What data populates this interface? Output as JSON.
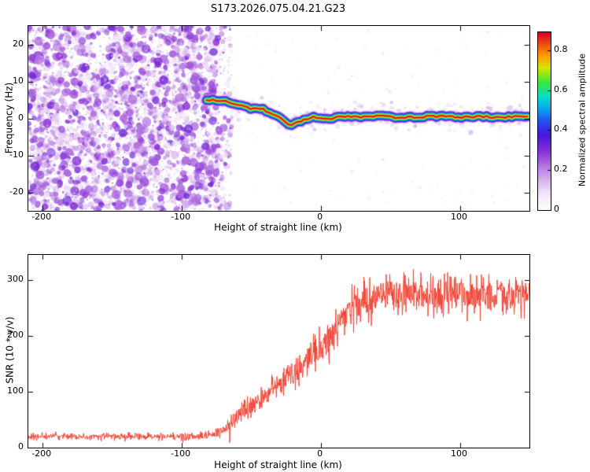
{
  "chart_data": [
    {
      "type": "heatmap",
      "title": "S173.2026.075.04.21.G23",
      "xlabel": "Height of straight line (km)",
      "ylabel": "Frequency (Hz)",
      "xlim": [
        -210,
        150
      ],
      "ylim": [
        -25,
        25
      ],
      "x_ticks": [
        -200,
        -100,
        0,
        100
      ],
      "y_ticks": [
        -20,
        -10,
        0,
        10,
        20
      ],
      "grid": false,
      "noise_region": {
        "x_start": -210,
        "x_end": -64
      },
      "trace": {
        "x": [
          -82,
          -75,
          -68,
          -62,
          -56,
          -50,
          -45,
          -40,
          -35,
          -30,
          -26,
          -22,
          -18,
          -14,
          -10,
          -5,
          0,
          6,
          12,
          20,
          30,
          42,
          55,
          70,
          85,
          100,
          115,
          130,
          140,
          150
        ],
        "f": [
          4.8,
          5.0,
          4.6,
          4.1,
          3.4,
          2.7,
          3.0,
          2.2,
          1.2,
          0.2,
          -0.8,
          -1.8,
          -1.4,
          -0.7,
          -0.1,
          0.3,
          0.2,
          -0.2,
          0.4,
          0.6,
          0.3,
          0.6,
          0.2,
          0.4,
          0.6,
          0.3,
          0.5,
          0.3,
          0.5,
          0.3
        ]
      },
      "colorbar": {
        "label": "Normalized spectral amplitude",
        "ticks": [
          "0",
          "0.2",
          "0.4",
          "0.6",
          "0.8"
        ],
        "range": [
          0,
          0.89
        ]
      },
      "colormap": [
        {
          "v": 0.0,
          "c": "#ffffff"
        },
        {
          "v": 0.1,
          "c": "#efe2f8"
        },
        {
          "v": 0.22,
          "c": "#c08ae4"
        },
        {
          "v": 0.33,
          "c": "#8a2fd4"
        },
        {
          "v": 0.42,
          "c": "#4318da"
        },
        {
          "v": 0.5,
          "c": "#2450f2"
        },
        {
          "v": 0.57,
          "c": "#09a6f2"
        },
        {
          "v": 0.64,
          "c": "#06dfc8"
        },
        {
          "v": 0.72,
          "c": "#3ae838"
        },
        {
          "v": 0.8,
          "c": "#d8e500"
        },
        {
          "v": 0.88,
          "c": "#ff9000"
        },
        {
          "v": 1.0,
          "c": "#d80028"
        }
      ]
    },
    {
      "type": "line",
      "xlabel": "Height of straight line (km)",
      "ylabel": "SNR (10 * v/v)",
      "xlim": [
        -210,
        150
      ],
      "ylim": [
        0,
        345
      ],
      "x_ticks": [
        -200,
        -100,
        0,
        100
      ],
      "y_ticks": [
        0,
        100,
        200,
        300
      ],
      "grid": false,
      "line_color": "#f13a2a",
      "trend": {
        "x": [
          -210,
          -120,
          -90,
          -80,
          -72,
          -64,
          -58,
          -52,
          -46,
          -40,
          -34,
          -28,
          -22,
          -16,
          -10,
          -4,
          2,
          8,
          14,
          20,
          26,
          34,
          44,
          60,
          80,
          100,
          120,
          135,
          150
        ],
        "y": [
          20,
          20,
          20,
          22,
          28,
          45,
          60,
          70,
          80,
          92,
          103,
          115,
          128,
          140,
          152,
          168,
          182,
          205,
          225,
          248,
          258,
          268,
          272,
          276,
          272,
          274,
          270,
          274,
          272
        ]
      },
      "noise_amp": {
        "x": [
          -210,
          -100,
          -85,
          -75,
          -65,
          -55,
          -45,
          -35,
          -25,
          -15,
          -5,
          5,
          15,
          25,
          40,
          60,
          100,
          150
        ],
        "a": [
          9,
          9,
          10,
          13,
          22,
          26,
          28,
          32,
          36,
          42,
          48,
          52,
          54,
          55,
          55,
          54,
          52,
          53
        ]
      }
    }
  ]
}
